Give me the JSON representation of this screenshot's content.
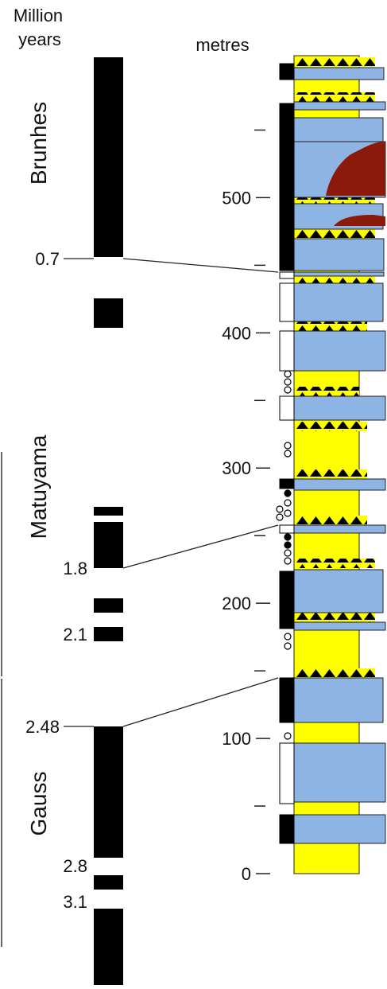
{
  "header": {
    "age_title": "Million years",
    "depth_title": "metres"
  },
  "chrons": [
    "Brunhes",
    "Matuyama",
    "Gauss"
  ],
  "ages": [
    "0.7",
    "1.8",
    "2.1",
    "2.48",
    "2.8",
    "3.1"
  ],
  "depth_axis": {
    "ylim": [
      0,
      605
    ],
    "ticks": [
      0,
      100,
      200,
      300,
      400,
      500
    ],
    "minor_ticks": [
      50,
      150,
      250,
      350,
      450,
      550
    ]
  }
}
